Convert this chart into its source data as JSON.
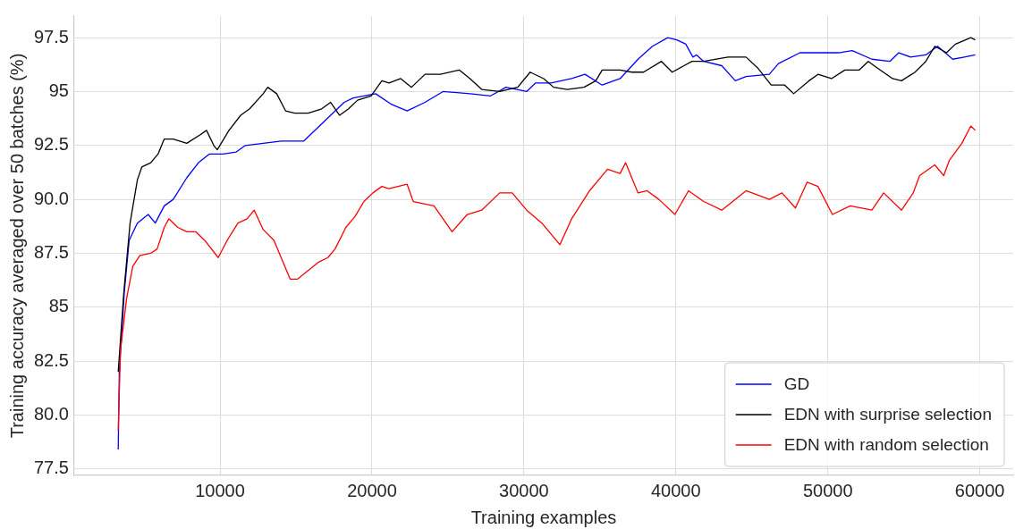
{
  "chart_data": {
    "type": "line",
    "xlabel": "Training examples",
    "ylabel": "Training accuracy averaged over 50 batches (%)",
    "xlim": [
      400,
      62200
    ],
    "ylim": [
      77.2,
      98.5
    ],
    "xticks": [
      10000,
      20000,
      30000,
      40000,
      50000,
      60000
    ],
    "yticks": [
      77.5,
      {
        "value": 80,
        "label": "80.0"
      },
      82.5,
      85,
      87.5,
      {
        "value": 90,
        "label": "90.0"
      },
      92.5,
      95,
      97.5
    ],
    "grid": true,
    "legend": "bottom right",
    "series": [
      {
        "name": "GD",
        "color": "#0000ff",
        "x": [
          3300,
          3370,
          3700,
          4020,
          4560,
          5270,
          5740,
          6330,
          6920,
          7810,
          8580,
          9290,
          10180,
          11070,
          11660,
          12840,
          14020,
          15500,
          16390,
          17280,
          18170,
          18760,
          19470,
          20240,
          21300,
          22310,
          23490,
          24670,
          26450,
          27810,
          28820,
          30180,
          30770,
          31780,
          33140,
          34020,
          35150,
          36330,
          37510,
          38460,
          39470,
          40060,
          40650,
          41120,
          41360,
          41830,
          43020,
          43910,
          44620,
          46150,
          46750,
          48170,
          49530,
          50710,
          51600,
          52900,
          54080,
          54670,
          55440,
          56450,
          57220,
          58220,
          58990,
          59700
        ],
        "values": [
          78.4,
          82.0,
          85.7,
          88.1,
          88.9,
          89.3,
          88.9,
          89.7,
          90.0,
          91.0,
          91.7,
          92.1,
          92.1,
          92.2,
          92.5,
          92.6,
          92.7,
          92.7,
          93.3,
          93.9,
          94.5,
          94.7,
          94.8,
          94.9,
          94.4,
          94.1,
          94.5,
          95.0,
          94.9,
          94.8,
          95.2,
          95.0,
          95.4,
          95.4,
          95.6,
          95.8,
          95.3,
          95.6,
          96.5,
          97.1,
          97.5,
          97.4,
          97.2,
          96.6,
          96.7,
          96.4,
          96.2,
          95.5,
          95.7,
          95.8,
          96.3,
          96.8,
          96.8,
          96.8,
          96.9,
          96.5,
          96.4,
          96.8,
          96.6,
          96.7,
          97.1,
          96.5,
          96.6,
          96.7
        ]
      },
      {
        "name": "EDN with surprise selection",
        "color": "#000000",
        "x": [
          3300,
          3670,
          4080,
          4560,
          4850,
          5440,
          5920,
          6330,
          6920,
          7810,
          8700,
          9110,
          9590,
          9820,
          10590,
          11360,
          11950,
          12840,
          13140,
          13730,
          14320,
          14910,
          15800,
          16690,
          17280,
          17870,
          18460,
          19050,
          19940,
          20650,
          21120,
          21890,
          22600,
          23490,
          24500,
          25740,
          26450,
          27220,
          28400,
          29590,
          30410,
          31300,
          31950,
          32840,
          33960,
          34730,
          35150,
          36330,
          37100,
          37870,
          39050,
          39760,
          41060,
          41830,
          43430,
          44620,
          45380,
          46270,
          47160,
          47750,
          48760,
          49350,
          50240,
          51120,
          52070,
          52660,
          53250,
          54260,
          54850,
          55740,
          56450,
          57040,
          57810,
          58400,
          59410,
          59700
        ],
        "values": [
          82.0,
          85.7,
          88.9,
          90.9,
          91.5,
          91.7,
          92.1,
          92.8,
          92.8,
          92.6,
          93.0,
          93.2,
          92.5,
          92.3,
          93.2,
          93.9,
          94.2,
          94.9,
          95.2,
          94.9,
          94.1,
          94.0,
          94.0,
          94.2,
          94.5,
          93.9,
          94.2,
          94.6,
          94.8,
          95.5,
          95.4,
          95.6,
          95.2,
          95.8,
          95.8,
          96.0,
          95.6,
          95.1,
          95.0,
          95.2,
          95.9,
          95.6,
          95.2,
          95.1,
          95.2,
          95.5,
          96.0,
          96.0,
          95.9,
          95.9,
          96.4,
          95.9,
          96.4,
          96.4,
          96.6,
          96.6,
          96.1,
          95.3,
          95.3,
          94.9,
          95.5,
          95.8,
          95.6,
          96.0,
          96.0,
          96.4,
          96.1,
          95.6,
          95.5,
          95.9,
          96.4,
          97.1,
          96.8,
          97.2,
          97.5,
          97.4
        ]
      },
      {
        "name": "EDN with random selection",
        "color": "#ff0000",
        "x": [
          3300,
          3450,
          3850,
          4260,
          4730,
          5440,
          5860,
          6330,
          6630,
          7220,
          7810,
          8400,
          8990,
          9880,
          10470,
          11180,
          11780,
          12250,
          12840,
          13550,
          14020,
          14620,
          15090,
          15800,
          16510,
          17100,
          17570,
          18280,
          18880,
          19470,
          20060,
          20650,
          21120,
          22310,
          22720,
          24080,
          25270,
          26270,
          27220,
          28400,
          29230,
          30180,
          31180,
          32370,
          33140,
          34320,
          35500,
          36330,
          36690,
          37510,
          38110,
          38880,
          39940,
          40830,
          41830,
          43020,
          44620,
          46150,
          46980,
          47870,
          48640,
          49350,
          50300,
          51480,
          52900,
          53670,
          54850,
          55620,
          56040,
          57040,
          57630,
          57990,
          58820,
          59410,
          59700
        ],
        "values": [
          79.3,
          83.0,
          85.4,
          86.9,
          87.4,
          87.5,
          87.7,
          88.7,
          89.1,
          88.7,
          88.5,
          88.5,
          88.1,
          87.3,
          88.1,
          88.9,
          89.1,
          89.5,
          88.6,
          88.1,
          87.3,
          86.3,
          86.3,
          86.7,
          87.1,
          87.3,
          87.7,
          88.7,
          89.2,
          89.9,
          90.3,
          90.6,
          90.5,
          90.7,
          89.9,
          89.7,
          88.5,
          89.3,
          89.5,
          90.3,
          90.3,
          89.5,
          88.9,
          87.9,
          89.1,
          90.4,
          91.4,
          91.2,
          91.7,
          90.3,
          90.4,
          90.0,
          89.3,
          90.4,
          89.9,
          89.5,
          90.4,
          90.0,
          90.3,
          89.6,
          90.8,
          90.6,
          89.3,
          89.7,
          89.5,
          90.3,
          89.5,
          90.3,
          91.1,
          91.6,
          91.1,
          91.8,
          92.6,
          93.4,
          93.2
        ]
      }
    ]
  }
}
